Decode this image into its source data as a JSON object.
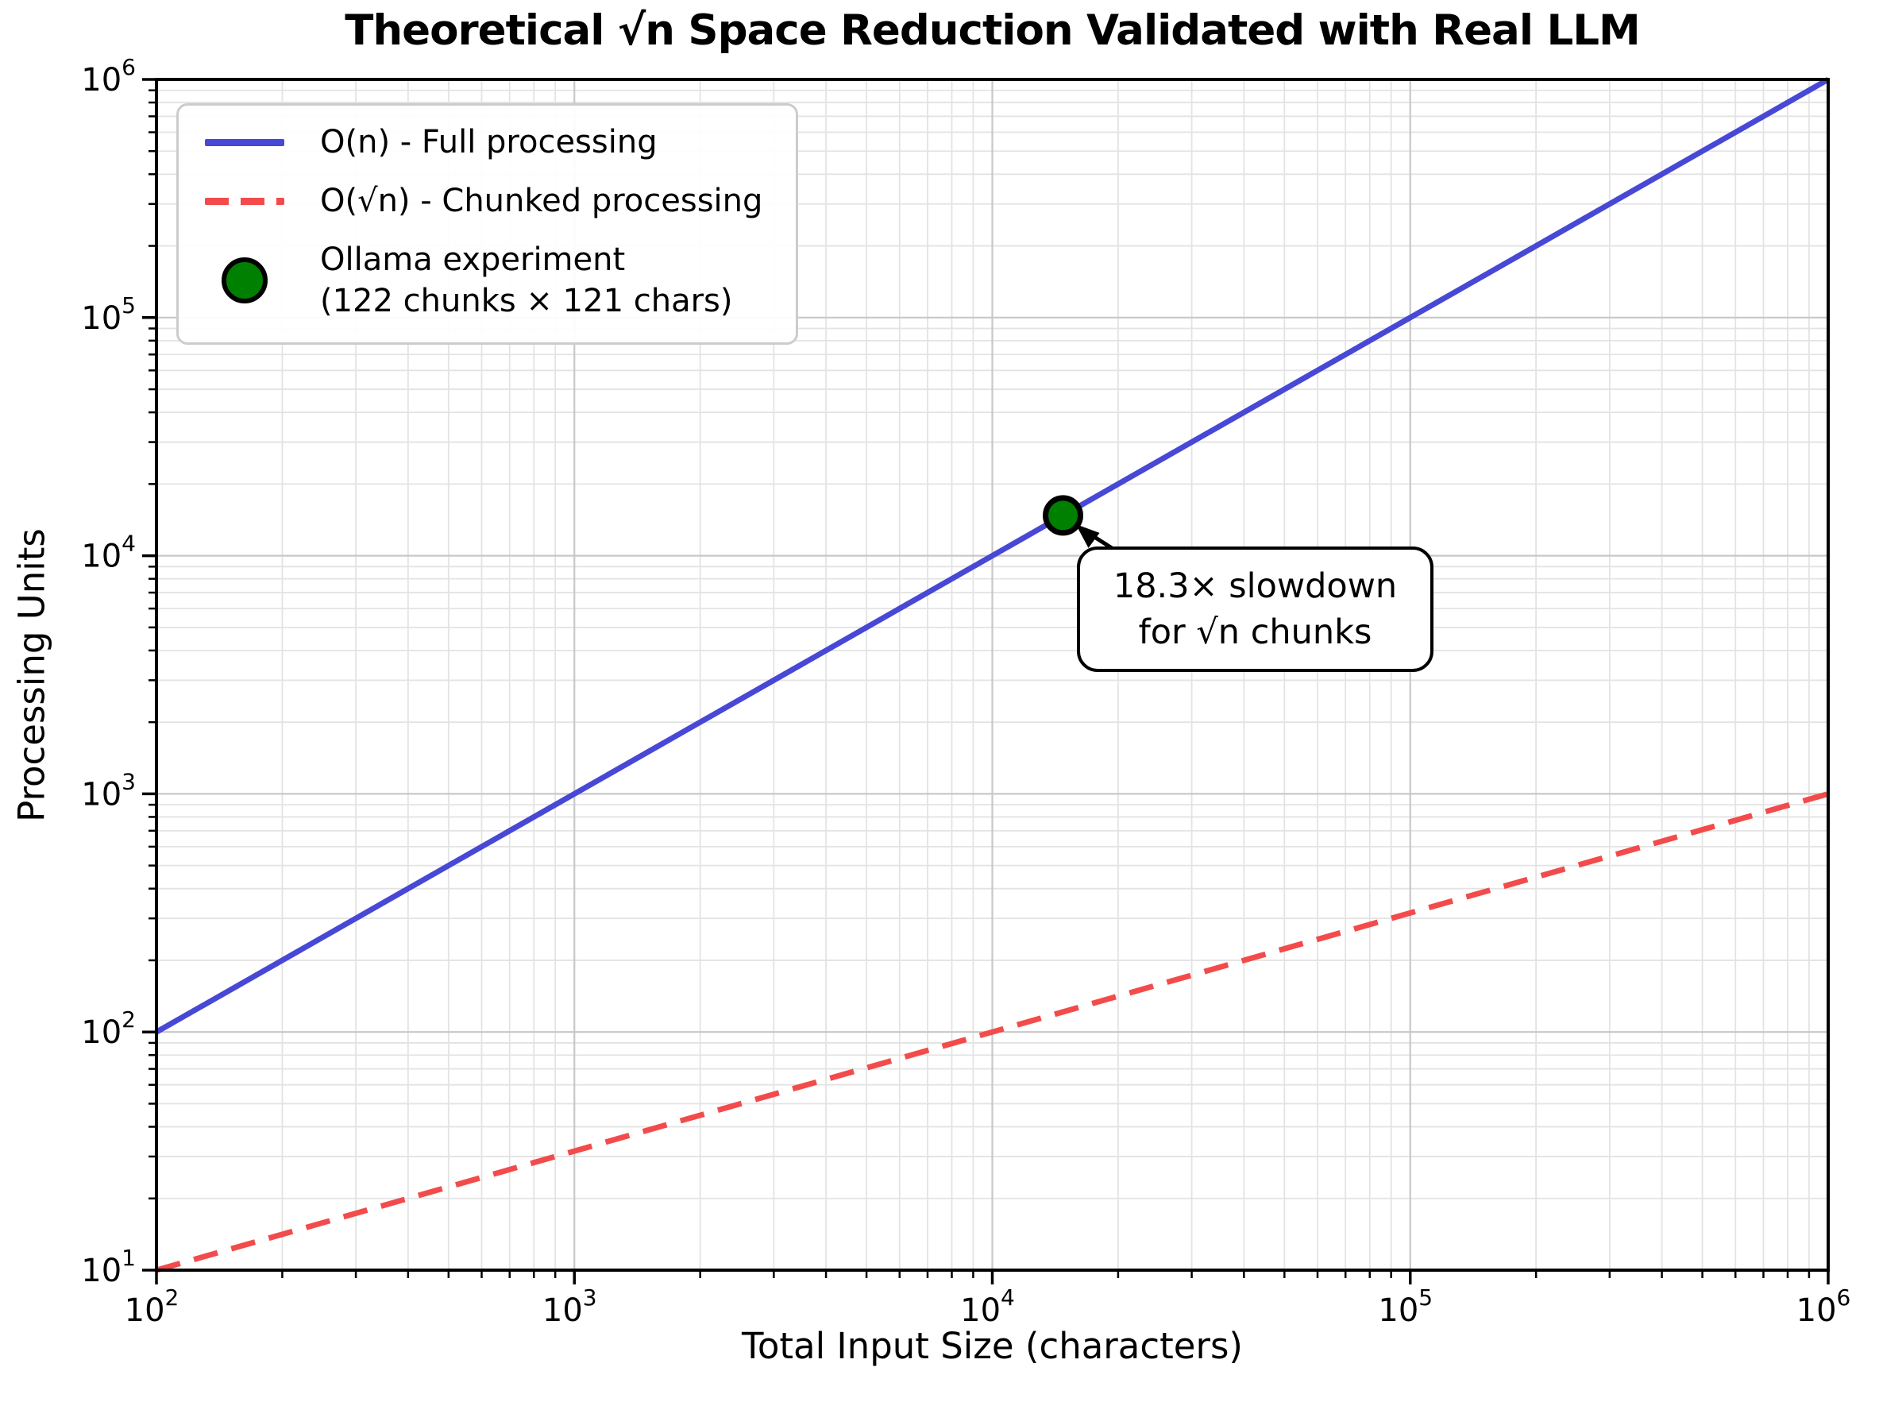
{
  "title": "Theoretical √n Space Reduction Validated with Real LLM",
  "axes": {
    "xlabel": "Total Input Size (characters)",
    "ylabel": "Processing Units",
    "x_tick_exponents": [
      2,
      3,
      4,
      5,
      6
    ],
    "y_tick_exponents": [
      1,
      2,
      3,
      4,
      5,
      6
    ]
  },
  "legend": {
    "items": [
      {
        "label": "O(n) - Full processing",
        "swatch": "solid-line",
        "color": "#4848d6"
      },
      {
        "label": "O(√n) - Chunked processing",
        "swatch": "dashed-line",
        "color": "#f34b4b"
      },
      {
        "line1": "Ollama experiment",
        "line2": "(122 chunks × 121 chars)",
        "swatch": "circle-marker",
        "color": "#008000",
        "edge_color": "#000000"
      }
    ]
  },
  "annotation": {
    "line1": "18.3× slowdown",
    "line2": "for √n chunks"
  },
  "chart_data": {
    "type": "line",
    "title": "Theoretical √n Space Reduction Validated with Real LLM",
    "xlabel": "Total Input Size (characters)",
    "ylabel": "Processing Units",
    "x_scale": "log",
    "y_scale": "log",
    "xlim": [
      100,
      1000000
    ],
    "ylim": [
      10,
      1000000
    ],
    "grid": "major+minor",
    "legend_position": "upper left",
    "colors": {
      "grid_major": "#c8c8c8",
      "grid_minor": "#e3e3e3",
      "spine": "#000000",
      "background": "#ffffff"
    },
    "series": [
      {
        "name": "O(n) - Full processing",
        "style": "solid",
        "color": "#4848d6",
        "width": 7,
        "x": [
          100,
          1000000
        ],
        "y": [
          100,
          1000000
        ]
      },
      {
        "name": "O(√n) - Chunked processing",
        "style": "dashed",
        "color": "#f34b4b",
        "width": 7,
        "x": [
          100,
          1000000
        ],
        "y": [
          10,
          1000
        ]
      }
    ],
    "points": [
      {
        "name": "Ollama experiment",
        "detail": "122 chunks × 121 chars",
        "x": 14762,
        "y": 14762,
        "radius": 22,
        "color": "#008000",
        "edge_color": "#000000",
        "edge_width": 7
      }
    ],
    "annotation": {
      "text": "18.3× slowdown for √n chunks",
      "target_x": 14762,
      "target_y": 14762
    }
  }
}
